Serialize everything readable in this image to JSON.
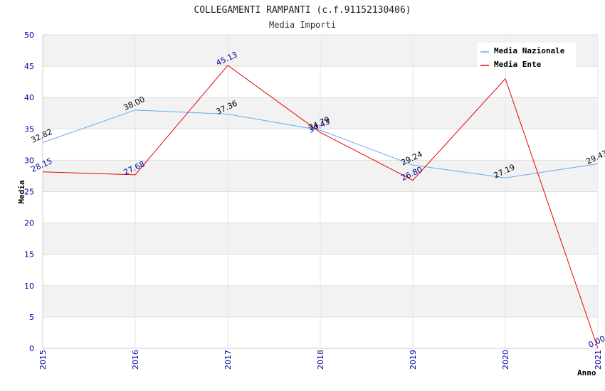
{
  "chart_data": {
    "type": "line",
    "title": "COLLEGAMENTI RAMPANTI (c.f.91152130406)",
    "subtitle": "Media Importi",
    "xlabel": "Anno",
    "ylabel": "Media",
    "ylim": [
      0,
      50
    ],
    "yticks": [
      "0",
      "5",
      "10",
      "15",
      "20",
      "25",
      "30",
      "35",
      "40",
      "45",
      "50"
    ],
    "categories": [
      "2015",
      "2016",
      "2017",
      "2018",
      "2019",
      "2020",
      "2021"
    ],
    "grid": true,
    "legend_position": "top-right",
    "series": [
      {
        "name": "Media Nazionale",
        "color": "#66aaee",
        "label_color": "#000000",
        "values": [
          32.82,
          38.0,
          37.36,
          34.79,
          29.24,
          27.19,
          29.43
        ],
        "labels": [
          "32.82",
          "38.00",
          "37.36",
          "34.79",
          "29.24",
          "27.19",
          "29.43"
        ]
      },
      {
        "name": "Media Ente",
        "color": "#ee0000",
        "label_color": "#000099",
        "values": [
          28.15,
          27.68,
          45.13,
          34.43,
          26.8,
          43.0,
          0.0
        ],
        "labels": [
          "28.15",
          "27.68",
          "45.13",
          "34.43",
          "26.80",
          "",
          "0.00"
        ]
      }
    ]
  }
}
